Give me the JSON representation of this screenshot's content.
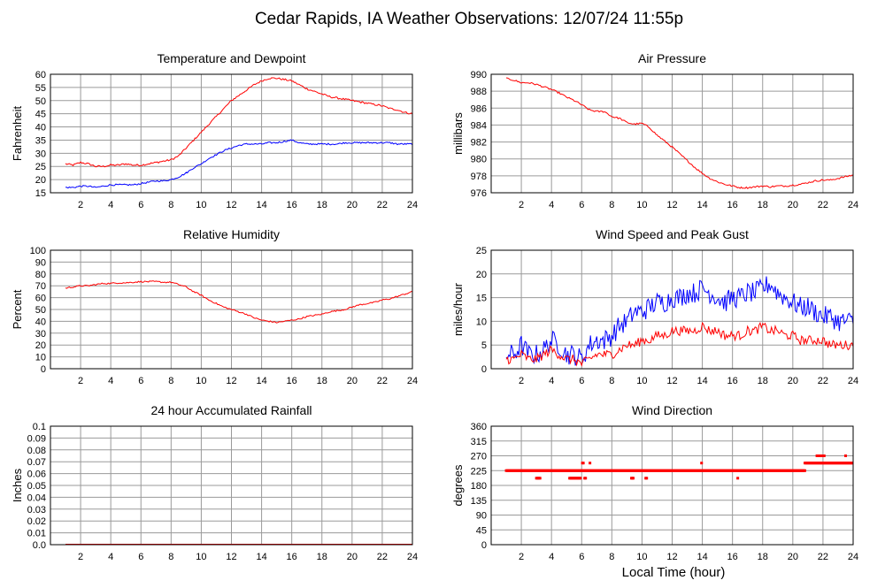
{
  "page_title": "Cedar Rapids, IA Weather Observations: 12/07/24 11:55p",
  "bottom_xlabel": "Local Time (hour)",
  "colors": {
    "series_red": "#ff0000",
    "series_blue": "#0000ff",
    "grid": "#9a9a9a",
    "frame": "#000000"
  },
  "chart_data": [
    {
      "type": "line",
      "title": "Temperature and Dewpoint",
      "ylabel": "Fahrenheit",
      "xlim": [
        0,
        24
      ],
      "ylim": [
        15,
        60
      ],
      "xticks": [
        "2",
        "4",
        "6",
        "8",
        "10",
        "12",
        "14",
        "16",
        "18",
        "20",
        "22",
        "24"
      ],
      "yticks": [
        "15",
        "20",
        "25",
        "30",
        "35",
        "40",
        "45",
        "50",
        "55",
        "60"
      ],
      "grid": true,
      "series": [
        {
          "color": "#ff0000",
          "noise": 0.35,
          "x": [
            1,
            1.5,
            2,
            2.5,
            3,
            3.5,
            4,
            4.5,
            5,
            5.5,
            6,
            6.5,
            7,
            7.5,
            8,
            8.5,
            9,
            9.5,
            10,
            10.5,
            11,
            11.5,
            12,
            12.5,
            13,
            13.5,
            14,
            14.5,
            15,
            15.5,
            16,
            16.5,
            17,
            17.5,
            18,
            18.5,
            19,
            19.5,
            20,
            20.5,
            21,
            21.5,
            22,
            22.5,
            23,
            23.5,
            24
          ],
          "y": [
            26,
            25.5,
            26.5,
            26,
            25,
            25,
            25.5,
            25.5,
            26,
            25.5,
            25.5,
            26,
            26.5,
            27,
            27.5,
            29,
            32,
            35,
            38,
            41,
            44,
            47,
            50,
            52,
            54,
            56,
            57.5,
            58.5,
            58.5,
            58,
            57.5,
            56,
            54.5,
            53.5,
            52.5,
            51.5,
            51,
            50.5,
            50,
            49.5,
            49,
            48.5,
            48,
            47,
            46.5,
            45.5,
            45
          ]
        },
        {
          "color": "#0000ff",
          "noise": 0.3,
          "x": [
            1,
            1.5,
            2,
            2.5,
            3,
            3.5,
            4,
            4.5,
            5,
            5.5,
            6,
            6.5,
            7,
            7.5,
            8,
            8.5,
            9,
            9.5,
            10,
            10.5,
            11,
            11.5,
            12,
            12.5,
            13,
            13.5,
            14,
            14.5,
            15,
            15.5,
            16,
            16.5,
            17,
            17.5,
            18,
            18.5,
            19,
            19.5,
            20,
            20.5,
            21,
            21.5,
            22,
            22.5,
            23,
            23.5,
            24
          ],
          "y": [
            17,
            17,
            17.5,
            17.5,
            17,
            17.5,
            18,
            18,
            18,
            18,
            18.5,
            19,
            19.5,
            19.5,
            20,
            21,
            22.5,
            24.5,
            26,
            28,
            29.5,
            31,
            32,
            33,
            33.5,
            33.5,
            33.5,
            34,
            34,
            34.5,
            35,
            34,
            33.5,
            33.5,
            33.5,
            33.5,
            33.5,
            34,
            34,
            34,
            34,
            34,
            34,
            34,
            33.5,
            33.5,
            33.5
          ]
        }
      ]
    },
    {
      "type": "line",
      "title": "Air Pressure",
      "ylabel": "millibars",
      "xlim": [
        0,
        24
      ],
      "ylim": [
        976,
        990
      ],
      "xticks": [
        "2",
        "4",
        "6",
        "8",
        "10",
        "12",
        "14",
        "16",
        "18",
        "20",
        "22",
        "24"
      ],
      "yticks": [
        "976",
        "978",
        "980",
        "982",
        "984",
        "986",
        "988",
        "990"
      ],
      "grid": true,
      "series": [
        {
          "color": "#ff0000",
          "noise": 0.1,
          "x": [
            1,
            1.5,
            2,
            2.5,
            3,
            3.5,
            4,
            4.5,
            5,
            5.5,
            6,
            6.5,
            7,
            7.5,
            8,
            8.5,
            9,
            9.5,
            10,
            10.5,
            11,
            11.5,
            12,
            12.5,
            13,
            13.5,
            14,
            14.5,
            15,
            15.5,
            16,
            16.5,
            17,
            17.5,
            18,
            18.5,
            19,
            19.5,
            20,
            20.5,
            21,
            21.5,
            22,
            22.5,
            23,
            23.5,
            24
          ],
          "y": [
            989.5,
            989.3,
            989,
            989,
            988.8,
            988.5,
            988.2,
            987.8,
            987.3,
            986.9,
            986.4,
            985.8,
            985.6,
            985.6,
            985,
            984.8,
            984.3,
            984.1,
            984.2,
            983.7,
            982.8,
            982.1,
            981.4,
            980.6,
            979.8,
            979,
            978.3,
            977.7,
            977.3,
            977,
            976.8,
            976.6,
            976.6,
            976.7,
            976.8,
            976.7,
            976.8,
            976.8,
            976.9,
            977,
            977.2,
            977.4,
            977.5,
            977.5,
            977.7,
            977.9,
            978.1
          ]
        }
      ]
    },
    {
      "type": "line",
      "title": "Relative Humidity",
      "ylabel": "Percent",
      "xlim": [
        0,
        24
      ],
      "ylim": [
        0,
        100
      ],
      "xticks": [
        "2",
        "4",
        "6",
        "8",
        "10",
        "12",
        "14",
        "16",
        "18",
        "20",
        "22",
        "24"
      ],
      "yticks": [
        "0",
        "10",
        "20",
        "30",
        "40",
        "50",
        "60",
        "70",
        "80",
        "90",
        "100"
      ],
      "grid": true,
      "series": [
        {
          "color": "#ff0000",
          "noise": 0.6,
          "x": [
            1,
            1.5,
            2,
            2.5,
            3,
            3.5,
            4,
            4.5,
            5,
            5.5,
            6,
            6.5,
            7,
            7.5,
            8,
            8.5,
            9,
            9.5,
            10,
            10.5,
            11,
            11.5,
            12,
            12.5,
            13,
            13.5,
            14,
            14.5,
            15,
            15.5,
            16,
            16.5,
            17,
            17.5,
            18,
            18.5,
            19,
            19.5,
            20,
            20.5,
            21,
            21.5,
            22,
            22.5,
            23,
            23.5,
            24
          ],
          "y": [
            68,
            69,
            70,
            70,
            71,
            72,
            72,
            72.5,
            72.5,
            73,
            73.5,
            73.5,
            73.5,
            73,
            73,
            71,
            69,
            65,
            62,
            58,
            55,
            52,
            50,
            48,
            46,
            43,
            41,
            40,
            39,
            40,
            41,
            42,
            44,
            45,
            46,
            48,
            49,
            50,
            52,
            54,
            55,
            56,
            58,
            59,
            61,
            63,
            65
          ]
        }
      ]
    },
    {
      "type": "line",
      "title": "Wind Speed and Peak Gust",
      "ylabel": "miles/hour",
      "xlim": [
        0,
        24
      ],
      "ylim": [
        0,
        25
      ],
      "xticks": [
        "2",
        "4",
        "6",
        "8",
        "10",
        "12",
        "14",
        "16",
        "18",
        "20",
        "22",
        "24"
      ],
      "yticks": [
        "0",
        "5",
        "10",
        "15",
        "20",
        "25"
      ],
      "grid": true,
      "series": [
        {
          "color": "#0000ff",
          "noise": 2.2,
          "x": [
            1,
            1.5,
            2,
            2.5,
            3,
            3.5,
            4,
            4.5,
            5,
            5.5,
            6,
            6.5,
            7,
            7.5,
            8,
            8.5,
            9,
            9.5,
            10,
            10.5,
            11,
            11.5,
            12,
            12.5,
            13,
            13.5,
            14,
            14.5,
            15,
            15.5,
            16,
            16.5,
            17,
            17.5,
            18,
            18.5,
            19,
            19.5,
            20,
            20.5,
            21,
            21.5,
            22,
            22.5,
            23,
            23.5,
            24
          ],
          "y": [
            3,
            3,
            5,
            3,
            3,
            4,
            6,
            5,
            3,
            3,
            2,
            5,
            6,
            6,
            7,
            9,
            10,
            12,
            12,
            13,
            14,
            14,
            15,
            15,
            16,
            16,
            17,
            16,
            15,
            14,
            15,
            15,
            16,
            16,
            17,
            18,
            16,
            15,
            14,
            13,
            13,
            12,
            11,
            11,
            10,
            10,
            10
          ]
        },
        {
          "color": "#ff0000",
          "noise": 1.0,
          "x": [
            1,
            1.5,
            2,
            2.5,
            3,
            3.5,
            4,
            4.5,
            5,
            5.5,
            6,
            6.5,
            7,
            7.5,
            8,
            8.5,
            9,
            9.5,
            10,
            10.5,
            11,
            11.5,
            12,
            12.5,
            13,
            13.5,
            14,
            14.5,
            15,
            15.5,
            16,
            16.5,
            17,
            17.5,
            18,
            18.5,
            19,
            19.5,
            20,
            20.5,
            21,
            21.5,
            22,
            22.5,
            23,
            23.5,
            24
          ],
          "y": [
            2,
            2,
            3,
            2,
            2,
            3,
            4,
            3,
            2,
            2,
            1,
            2,
            3,
            3,
            3,
            4,
            5,
            5,
            6,
            6,
            7,
            7,
            8,
            8,
            8,
            8,
            9,
            8,
            8,
            7,
            7,
            7,
            8,
            8,
            9,
            8,
            8,
            7,
            7,
            6,
            6,
            6,
            6,
            5,
            5,
            5,
            5
          ]
        }
      ]
    },
    {
      "type": "line",
      "title": "24 hour Accumulated Rainfall",
      "ylabel": "Inches",
      "xlim": [
        0,
        24
      ],
      "ylim": [
        0,
        0.1
      ],
      "xticks": [
        "2",
        "4",
        "6",
        "8",
        "10",
        "12",
        "14",
        "16",
        "18",
        "20",
        "22",
        "24"
      ],
      "yticks": [
        "0.0",
        "0.01",
        "0.02",
        "0.03",
        "0.04",
        "0.05",
        "0.06",
        "0.07",
        "0.08",
        "0.09",
        "0.1"
      ],
      "grid": true,
      "series": [
        {
          "color": "#ff0000",
          "noise": 0,
          "x": [
            1,
            24
          ],
          "y": [
            0,
            0
          ]
        }
      ]
    },
    {
      "type": "scatter",
      "title": "Wind Direction",
      "ylabel": "degrees",
      "xlabel": "Local Time (hour)",
      "xlim": [
        0,
        24
      ],
      "ylim": [
        0,
        360
      ],
      "xticks": [
        "2",
        "4",
        "6",
        "8",
        "10",
        "12",
        "14",
        "16",
        "18",
        "20",
        "22",
        "24"
      ],
      "yticks": [
        "0",
        "45",
        "90",
        "135",
        "180",
        "225",
        "270",
        "315",
        "360"
      ],
      "grid": true,
      "series": [
        {
          "color": "#ff0000",
          "segments": [
            {
              "x": [
                1.0,
                20.8
              ],
              "y": 225,
              "step": 0.06
            },
            {
              "x": [
                3.0,
                3.25
              ],
              "y": 202,
              "step": 0.06
            },
            {
              "x": [
                5.2,
                5.95
              ],
              "y": 202,
              "step": 0.06
            },
            {
              "x": [
                6.05,
                6.15
              ],
              "y": 248,
              "step": 0.06
            },
            {
              "x": [
                6.55,
                6.6
              ],
              "y": 248,
              "step": 0.06
            },
            {
              "x": [
                6.2,
                6.3
              ],
              "y": 202,
              "step": 0.06
            },
            {
              "x": [
                9.3,
                9.45
              ],
              "y": 202,
              "step": 0.06
            },
            {
              "x": [
                10.25,
                10.35
              ],
              "y": 202,
              "step": 0.06
            },
            {
              "x": [
                13.95,
                14.0
              ],
              "y": 248,
              "step": 0.06
            },
            {
              "x": [
                16.35,
                16.4
              ],
              "y": 202,
              "step": 0.06
            },
            {
              "x": [
                20.8,
                24.0
              ],
              "y": 248,
              "step": 0.06
            },
            {
              "x": [
                21.6,
                22.1
              ],
              "y": 270,
              "step": 0.06
            },
            {
              "x": [
                23.5,
                23.55
              ],
              "y": 270,
              "step": 0.06
            }
          ]
        }
      ]
    }
  ]
}
